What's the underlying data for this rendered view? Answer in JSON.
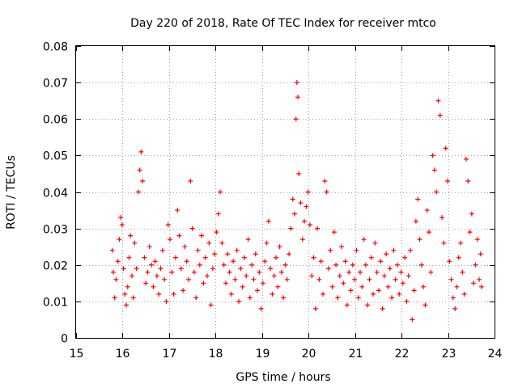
{
  "chart_data": {
    "type": "scatter",
    "title": "Day 220 of 2018, Rate Of TEC Index for receiver mtco",
    "xlabel": "GPS time / hours",
    "ylabel": "ROTI / TECUs",
    "xlim": [
      15,
      24
    ],
    "ylim": [
      0,
      0.08
    ],
    "x_ticks": [
      15,
      16,
      17,
      18,
      19,
      20,
      21,
      22,
      23,
      24
    ],
    "x_tick_labels": [
      "15",
      "16",
      "17",
      "18",
      "19",
      "20",
      "21",
      "22",
      "23",
      "24"
    ],
    "y_ticks": [
      0,
      0.01,
      0.02,
      0.03,
      0.04,
      0.05,
      0.06,
      0.07,
      0.08
    ],
    "y_tick_labels": [
      "0",
      "0.01",
      "0.02",
      "0.03",
      "0.04",
      "0.05",
      "0.06",
      "0.07",
      "0.08"
    ],
    "grid": true,
    "marker": "+",
    "series": [
      {
        "name": "ROTI",
        "color": "#ff0000",
        "points": [
          [
            15.78,
            0.024
          ],
          [
            15.8,
            0.018
          ],
          [
            15.83,
            0.011
          ],
          [
            15.86,
            0.016
          ],
          [
            15.9,
            0.021
          ],
          [
            15.93,
            0.027
          ],
          [
            15.96,
            0.033
          ],
          [
            15.99,
            0.031
          ],
          [
            16.02,
            0.019
          ],
          [
            16.05,
            0.012
          ],
          [
            16.08,
            0.009
          ],
          [
            16.11,
            0.014
          ],
          [
            16.14,
            0.022
          ],
          [
            16.17,
            0.028
          ],
          [
            16.2,
            0.017
          ],
          [
            16.23,
            0.011
          ],
          [
            16.26,
            0.026
          ],
          [
            16.3,
            0.019
          ],
          [
            16.34,
            0.04
          ],
          [
            16.37,
            0.046
          ],
          [
            16.4,
            0.051
          ],
          [
            16.43,
            0.043
          ],
          [
            16.47,
            0.022
          ],
          [
            16.5,
            0.015
          ],
          [
            16.54,
            0.018
          ],
          [
            16.58,
            0.025
          ],
          [
            16.62,
            0.02
          ],
          [
            16.66,
            0.014
          ],
          [
            16.7,
            0.021
          ],
          [
            16.74,
            0.017
          ],
          [
            16.78,
            0.012
          ],
          [
            16.82,
            0.019
          ],
          [
            16.86,
            0.024
          ],
          [
            16.9,
            0.016
          ],
          [
            16.94,
            0.01
          ],
          [
            16.98,
            0.031
          ],
          [
            17.02,
            0.027
          ],
          [
            17.06,
            0.018
          ],
          [
            17.1,
            0.012
          ],
          [
            17.14,
            0.022
          ],
          [
            17.18,
            0.035
          ],
          [
            17.22,
            0.028
          ],
          [
            17.26,
            0.019
          ],
          [
            17.3,
            0.013
          ],
          [
            17.34,
            0.025
          ],
          [
            17.38,
            0.021
          ],
          [
            17.42,
            0.016
          ],
          [
            17.46,
            0.043
          ],
          [
            17.5,
            0.03
          ],
          [
            17.54,
            0.018
          ],
          [
            17.58,
            0.011
          ],
          [
            17.62,
            0.024
          ],
          [
            17.66,
            0.02
          ],
          [
            17.7,
            0.028
          ],
          [
            17.74,
            0.015
          ],
          [
            17.78,
            0.022
          ],
          [
            17.82,
            0.017
          ],
          [
            17.86,
            0.026
          ],
          [
            17.9,
            0.009
          ],
          [
            17.94,
            0.019
          ],
          [
            17.98,
            0.023
          ],
          [
            18.02,
            0.029
          ],
          [
            18.06,
            0.034
          ],
          [
            18.1,
            0.04
          ],
          [
            18.14,
            0.026
          ],
          [
            18.18,
            0.02
          ],
          [
            18.22,
            0.015
          ],
          [
            18.26,
            0.023
          ],
          [
            18.3,
            0.018
          ],
          [
            18.34,
            0.012
          ],
          [
            18.38,
            0.021
          ],
          [
            18.42,
            0.016
          ],
          [
            18.46,
            0.024
          ],
          [
            18.5,
            0.01
          ],
          [
            18.54,
            0.019
          ],
          [
            18.58,
            0.014
          ],
          [
            18.62,
            0.022
          ],
          [
            18.66,
            0.017
          ],
          [
            18.7,
            0.027
          ],
          [
            18.74,
            0.011
          ],
          [
            18.78,
            0.02
          ],
          [
            18.82,
            0.016
          ],
          [
            18.86,
            0.023
          ],
          [
            18.9,
            0.013
          ],
          [
            18.94,
            0.018
          ],
          [
            18.98,
            0.008
          ],
          [
            19.02,
            0.015
          ],
          [
            19.06,
            0.021
          ],
          [
            19.1,
            0.026
          ],
          [
            19.14,
            0.032
          ],
          [
            19.18,
            0.019
          ],
          [
            19.22,
            0.012
          ],
          [
            19.26,
            0.017
          ],
          [
            19.3,
            0.022
          ],
          [
            19.34,
            0.014
          ],
          [
            19.38,
            0.025
          ],
          [
            19.42,
            0.018
          ],
          [
            19.46,
            0.011
          ],
          [
            19.5,
            0.02
          ],
          [
            19.54,
            0.016
          ],
          [
            19.58,
            0.023
          ],
          [
            19.62,
            0.03
          ],
          [
            19.66,
            0.038
          ],
          [
            19.7,
            0.034
          ],
          [
            19.73,
            0.06
          ],
          [
            19.75,
            0.07
          ],
          [
            19.77,
            0.066
          ],
          [
            19.79,
            0.045
          ],
          [
            19.83,
            0.037
          ],
          [
            19.87,
            0.027
          ],
          [
            19.91,
            0.032
          ],
          [
            19.95,
            0.036
          ],
          [
            19.99,
            0.04
          ],
          [
            20.03,
            0.031
          ],
          [
            20.07,
            0.017
          ],
          [
            20.11,
            0.022
          ],
          [
            20.15,
            0.008
          ],
          [
            20.19,
            0.03
          ],
          [
            20.23,
            0.016
          ],
          [
            20.27,
            0.021
          ],
          [
            20.31,
            0.012
          ],
          [
            20.35,
            0.043
          ],
          [
            20.39,
            0.04
          ],
          [
            20.43,
            0.019
          ],
          [
            20.47,
            0.024
          ],
          [
            20.51,
            0.014
          ],
          [
            20.55,
            0.029
          ],
          [
            20.59,
            0.02
          ],
          [
            20.63,
            0.011
          ],
          [
            20.67,
            0.017
          ],
          [
            20.71,
            0.025
          ],
          [
            20.75,
            0.015
          ],
          [
            20.79,
            0.021
          ],
          [
            20.83,
            0.009
          ],
          [
            20.87,
            0.018
          ],
          [
            20.91,
            0.013
          ],
          [
            20.95,
            0.02
          ],
          [
            20.99,
            0.016
          ],
          [
            21.03,
            0.024
          ],
          [
            21.07,
            0.011
          ],
          [
            21.11,
            0.018
          ],
          [
            21.15,
            0.014
          ],
          [
            21.19,
            0.027
          ],
          [
            21.23,
            0.02
          ],
          [
            21.27,
            0.009
          ],
          [
            21.31,
            0.016
          ],
          [
            21.35,
            0.022
          ],
          [
            21.39,
            0.012
          ],
          [
            21.43,
            0.026
          ],
          [
            21.47,
            0.018
          ],
          [
            21.51,
            0.013
          ],
          [
            21.55,
            0.021
          ],
          [
            21.59,
            0.008
          ],
          [
            21.63,
            0.017
          ],
          [
            21.67,
            0.023
          ],
          [
            21.71,
            0.014
          ],
          [
            21.75,
            0.019
          ],
          [
            21.79,
            0.011
          ],
          [
            21.83,
            0.024
          ],
          [
            21.87,
            0.016
          ],
          [
            21.91,
            0.02
          ],
          [
            21.95,
            0.012
          ],
          [
            21.99,
            0.018
          ],
          [
            22.03,
            0.015
          ],
          [
            22.07,
            0.022
          ],
          [
            22.11,
            0.01
          ],
          [
            22.15,
            0.017
          ],
          [
            22.19,
            0.024
          ],
          [
            22.23,
            0.005
          ],
          [
            22.27,
            0.013
          ],
          [
            22.31,
            0.032
          ],
          [
            22.35,
            0.038
          ],
          [
            22.39,
            0.027
          ],
          [
            22.43,
            0.02
          ],
          [
            22.47,
            0.014
          ],
          [
            22.51,
            0.009
          ],
          [
            22.55,
            0.035
          ],
          [
            22.59,
            0.029
          ],
          [
            22.63,
            0.018
          ],
          [
            22.67,
            0.05
          ],
          [
            22.71,
            0.046
          ],
          [
            22.75,
            0.04
          ],
          [
            22.79,
            0.065
          ],
          [
            22.83,
            0.061
          ],
          [
            22.87,
            0.033
          ],
          [
            22.91,
            0.026
          ],
          [
            22.95,
            0.052
          ],
          [
            22.99,
            0.043
          ],
          [
            23.03,
            0.021
          ],
          [
            23.07,
            0.016
          ],
          [
            23.11,
            0.011
          ],
          [
            23.15,
            0.008
          ],
          [
            23.19,
            0.014
          ],
          [
            23.23,
            0.022
          ],
          [
            23.27,
            0.026
          ],
          [
            23.31,
            0.018
          ],
          [
            23.35,
            0.012
          ],
          [
            23.39,
            0.049
          ],
          [
            23.43,
            0.043
          ],
          [
            23.47,
            0.029
          ],
          [
            23.51,
            0.034
          ],
          [
            23.55,
            0.015
          ],
          [
            23.59,
            0.02
          ],
          [
            23.63,
            0.027
          ],
          [
            23.67,
            0.016
          ],
          [
            23.7,
            0.023
          ],
          [
            23.72,
            0.014
          ]
        ]
      }
    ]
  }
}
